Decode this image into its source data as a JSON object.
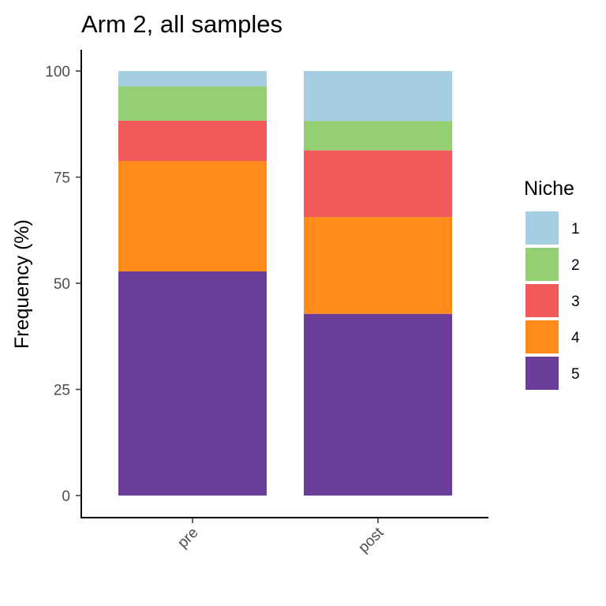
{
  "chart_data": {
    "type": "bar",
    "stacked": true,
    "title": "Arm 2, all samples",
    "xlabel": "",
    "ylabel": "Frequency (%)",
    "ylim": [
      0,
      100
    ],
    "yticks": [
      0,
      25,
      50,
      75,
      100
    ],
    "categories": [
      "pre",
      "post"
    ],
    "legend": {
      "title": "Niche",
      "placement": "right"
    },
    "grid": false,
    "series": [
      {
        "name": "5",
        "color": "#6A3D9A",
        "values": [
          52.8,
          42.8
        ]
      },
      {
        "name": "4",
        "color": "#FF8C1A",
        "values": [
          26.0,
          22.8
        ]
      },
      {
        "name": "3",
        "color": "#F05A5A",
        "values": [
          9.5,
          15.7
        ]
      },
      {
        "name": "2",
        "color": "#94D073",
        "values": [
          8.1,
          6.9
        ]
      },
      {
        "name": "1",
        "color": "#A6CEE3",
        "values": [
          3.6,
          11.8
        ]
      }
    ]
  }
}
